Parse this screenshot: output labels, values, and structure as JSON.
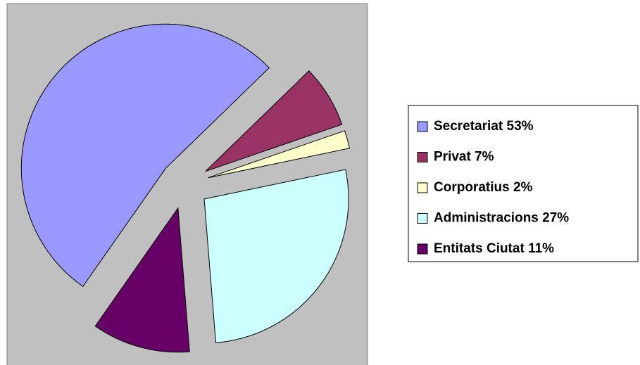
{
  "chart_data": {
    "type": "pie",
    "categories": [
      "Secretariat",
      "Privat",
      "Corporatius",
      "Administracions",
      "Entitats Ciutat"
    ],
    "values": [
      53,
      7,
      2,
      27,
      11
    ],
    "value_labels": [
      "53%",
      "7%",
      "2%",
      "27%",
      "11%"
    ],
    "colors": [
      "#9999ff",
      "#993366",
      "#ffffcc",
      "#ccffff",
      "#660066"
    ],
    "legend": "right"
  }
}
